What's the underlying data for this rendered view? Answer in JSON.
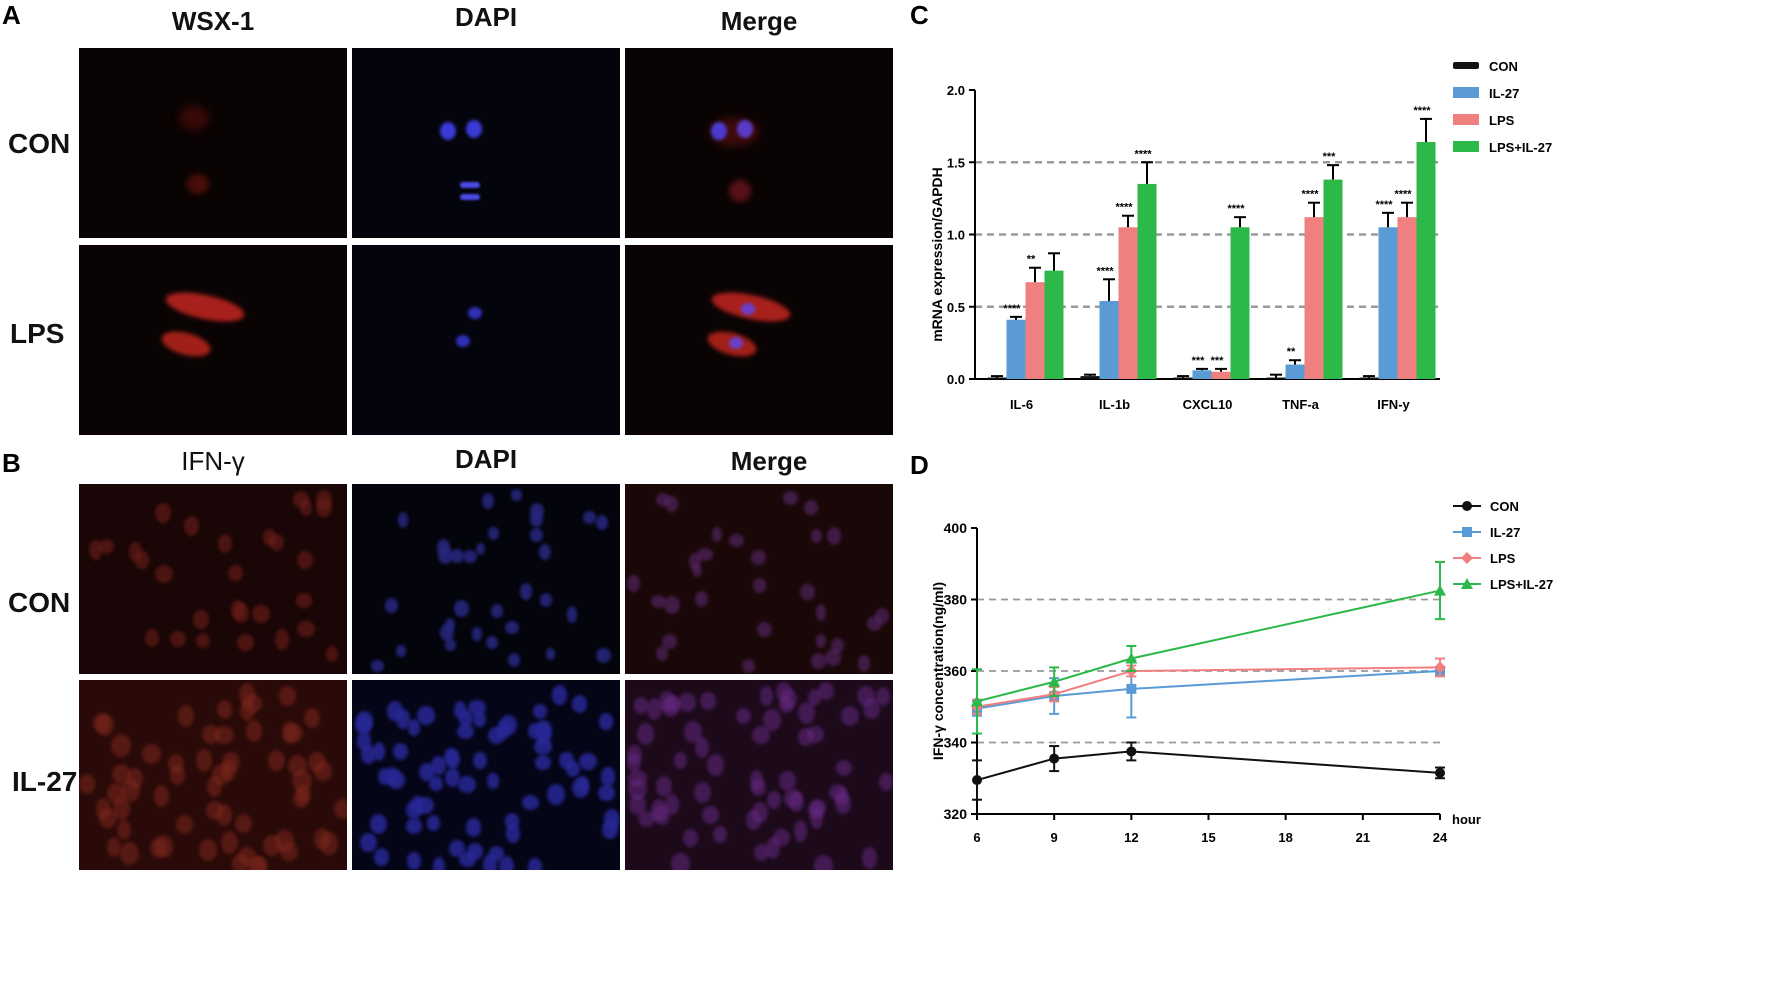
{
  "panels": {
    "A": {
      "label": "A",
      "columns": [
        "WSX-1",
        "DAPI",
        "Merge"
      ],
      "rows": [
        "CON",
        "LPS"
      ]
    },
    "B": {
      "label": "B",
      "columns": [
        "IFN-γ",
        "DAPI",
        "Merge"
      ],
      "rows": [
        "CON",
        "IL-27"
      ]
    },
    "C": {
      "label": "C"
    },
    "D": {
      "label": "D"
    }
  },
  "chart_data": [
    {
      "type": "bar",
      "ylabel": "mRNA expression/GAPDH",
      "ylim": [
        0,
        2.0
      ],
      "yticks": [
        "0.0",
        "0.5",
        "1.0",
        "1.5",
        "2.0"
      ],
      "grid_dashed_at": [
        0.5,
        1.0,
        1.5
      ],
      "categories": [
        "IL-6",
        "IL-1b",
        "CXCL10",
        "TNF-a",
        "IFN-y"
      ],
      "legend_position": "top-right",
      "series": [
        {
          "name": "CON",
          "color": "#111111",
          "values": [
            0.01,
            0.02,
            0.01,
            0.01,
            0.01
          ],
          "errors": [
            0.01,
            0.01,
            0.01,
            0.02,
            0.01
          ]
        },
        {
          "name": "IL-27",
          "color": "#5b9bd5",
          "values": [
            0.41,
            0.54,
            0.06,
            0.1,
            1.05
          ],
          "errors": [
            0.02,
            0.15,
            0.01,
            0.03,
            0.1
          ]
        },
        {
          "name": "LPS",
          "color": "#f08080",
          "values": [
            0.67,
            1.05,
            0.05,
            1.12,
            1.12
          ],
          "errors": [
            0.1,
            0.08,
            0.02,
            0.1,
            0.1
          ]
        },
        {
          "name": "LPS+IL-27",
          "color": "#2db84a",
          "values": [
            0.75,
            1.35,
            1.05,
            1.38,
            1.64
          ],
          "errors": [
            0.12,
            0.15,
            0.07,
            0.1,
            0.16
          ]
        }
      ],
      "significance": [
        {
          "category": 0,
          "series": 1,
          "text": "****"
        },
        {
          "category": 0,
          "series": 2,
          "text": "**"
        },
        {
          "category": 1,
          "series": 1,
          "text": "****"
        },
        {
          "category": 1,
          "series": 2,
          "text": "****"
        },
        {
          "category": 1,
          "series": 3,
          "text": "****"
        },
        {
          "category": 2,
          "series": 1,
          "text": "***"
        },
        {
          "category": 2,
          "series": 2,
          "text": "***"
        },
        {
          "category": 2,
          "series": 3,
          "text": "****"
        },
        {
          "category": 3,
          "series": 1,
          "text": "**"
        },
        {
          "category": 3,
          "series": 2,
          "text": "****"
        },
        {
          "category": 3,
          "series": 3,
          "text": "***"
        },
        {
          "category": 4,
          "series": 1,
          "text": "****"
        },
        {
          "category": 4,
          "series": 2,
          "text": "****"
        },
        {
          "category": 4,
          "series": 3,
          "text": "****"
        }
      ]
    },
    {
      "type": "line",
      "ylabel": "IFN-γ concentration(ng/ml)",
      "xlabel": "hour",
      "xticks": [
        6,
        9,
        12,
        15,
        18,
        21,
        24
      ],
      "ylim": [
        320,
        400
      ],
      "yticks": [
        320,
        340,
        360,
        380,
        400
      ],
      "grid_dashed_at": [
        340,
        360,
        380
      ],
      "legend_position": "top-right",
      "series": [
        {
          "name": "CON",
          "color": "#111111",
          "marker": "circle",
          "x": [
            6,
            9,
            12,
            24
          ],
          "y": [
            329.5,
            335.5,
            337.5,
            331.5
          ],
          "errors": [
            5.5,
            3.5,
            2.5,
            1.5
          ]
        },
        {
          "name": "IL-27",
          "color": "#5b9bd5",
          "marker": "square",
          "x": [
            6,
            9,
            12,
            24
          ],
          "y": [
            349.5,
            353,
            355,
            360
          ],
          "errors": [
            2,
            5,
            8,
            1
          ]
        },
        {
          "name": "LPS",
          "color": "#f08080",
          "marker": "diamond",
          "x": [
            6,
            9,
            12,
            24
          ],
          "y": [
            350,
            353.5,
            360,
            361
          ],
          "errors": [
            2,
            2,
            1.5,
            2.5
          ]
        },
        {
          "name": "LPS+IL-27",
          "color": "#2db84a",
          "marker": "triangle",
          "x": [
            6,
            9,
            12,
            24
          ],
          "y": [
            351.5,
            357,
            363.5,
            382.5
          ],
          "errors": [
            9,
            4,
            3.5,
            8
          ]
        }
      ]
    }
  ]
}
